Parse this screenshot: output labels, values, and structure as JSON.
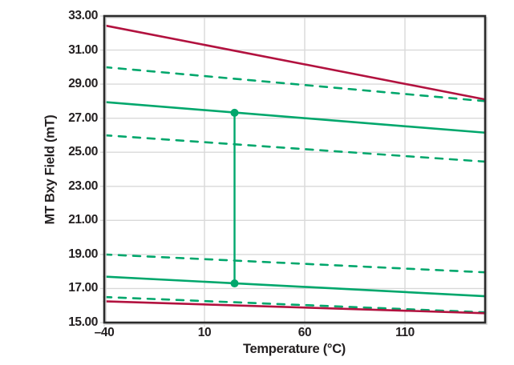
{
  "chart_data": {
    "type": "line",
    "title": "",
    "xlabel": "Temperature (°C)",
    "ylabel": "MT Bxy Field (mT)",
    "xlim": [
      -40,
      150
    ],
    "ylim": [
      15,
      33
    ],
    "xticks": [
      {
        "v": -40,
        "label": "–40"
      },
      {
        "v": 10,
        "label": "10"
      },
      {
        "v": 60,
        "label": "60"
      },
      {
        "v": 110,
        "label": "110"
      }
    ],
    "yticks": [
      {
        "v": 33,
        "label": "33.00"
      },
      {
        "v": 31,
        "label": "31.00"
      },
      {
        "v": 29,
        "label": "29.00"
      },
      {
        "v": 27,
        "label": "27.00"
      },
      {
        "v": 25,
        "label": "25.00"
      },
      {
        "v": 23,
        "label": "23.00"
      },
      {
        "v": 21,
        "label": "21.00"
      },
      {
        "v": 19,
        "label": "19.00"
      },
      {
        "v": 17,
        "label": "17.00"
      },
      {
        "v": 15,
        "label": "15.00"
      }
    ],
    "grid": true,
    "legend_visible": false,
    "colors": {
      "green": "#00a76c",
      "red": "#b2123f",
      "grid": "#d9d9d9",
      "axis_border": "#2b2b2b",
      "border_shadow": "#d4d4d4",
      "text": "#231f20",
      "background": "#ffffff"
    },
    "series": [
      {
        "name": "red-line-upper",
        "color_key": "red",
        "style": "solid",
        "x": [
          -40,
          150
        ],
        "y": [
          32.45,
          28.1
        ]
      },
      {
        "name": "green-dashed-upper-outer",
        "color_key": "green",
        "style": "dashed",
        "x": [
          -40,
          150
        ],
        "y": [
          30.0,
          28.0
        ]
      },
      {
        "name": "green-solid-upper",
        "color_key": "green",
        "style": "solid",
        "x": [
          -40,
          150
        ],
        "y": [
          27.95,
          26.15
        ]
      },
      {
        "name": "green-dashed-upper-inner",
        "color_key": "green",
        "style": "dashed",
        "x": [
          -40,
          150
        ],
        "y": [
          26.0,
          24.45
        ]
      },
      {
        "name": "green-dashed-lower-outer",
        "color_key": "green",
        "style": "dashed",
        "x": [
          -40,
          150
        ],
        "y": [
          19.0,
          17.95
        ]
      },
      {
        "name": "green-solid-lower",
        "color_key": "green",
        "style": "solid",
        "x": [
          -40,
          150
        ],
        "y": [
          17.7,
          16.55
        ]
      },
      {
        "name": "green-dashed-lower-inner",
        "color_key": "green",
        "style": "dashed",
        "x": [
          -40,
          150
        ],
        "y": [
          16.5,
          15.6
        ]
      },
      {
        "name": "red-line-lower",
        "color_key": "red",
        "style": "solid",
        "x": [
          -40,
          150
        ],
        "y": [
          16.25,
          15.55
        ]
      }
    ],
    "annotation_marker": {
      "name": "vertical-span-marker",
      "x": 25,
      "y_bottom": 17.3,
      "y_top": 27.32,
      "color_key": "green",
      "endpoint_style": "filled-circle",
      "dot_radius": 5
    }
  }
}
